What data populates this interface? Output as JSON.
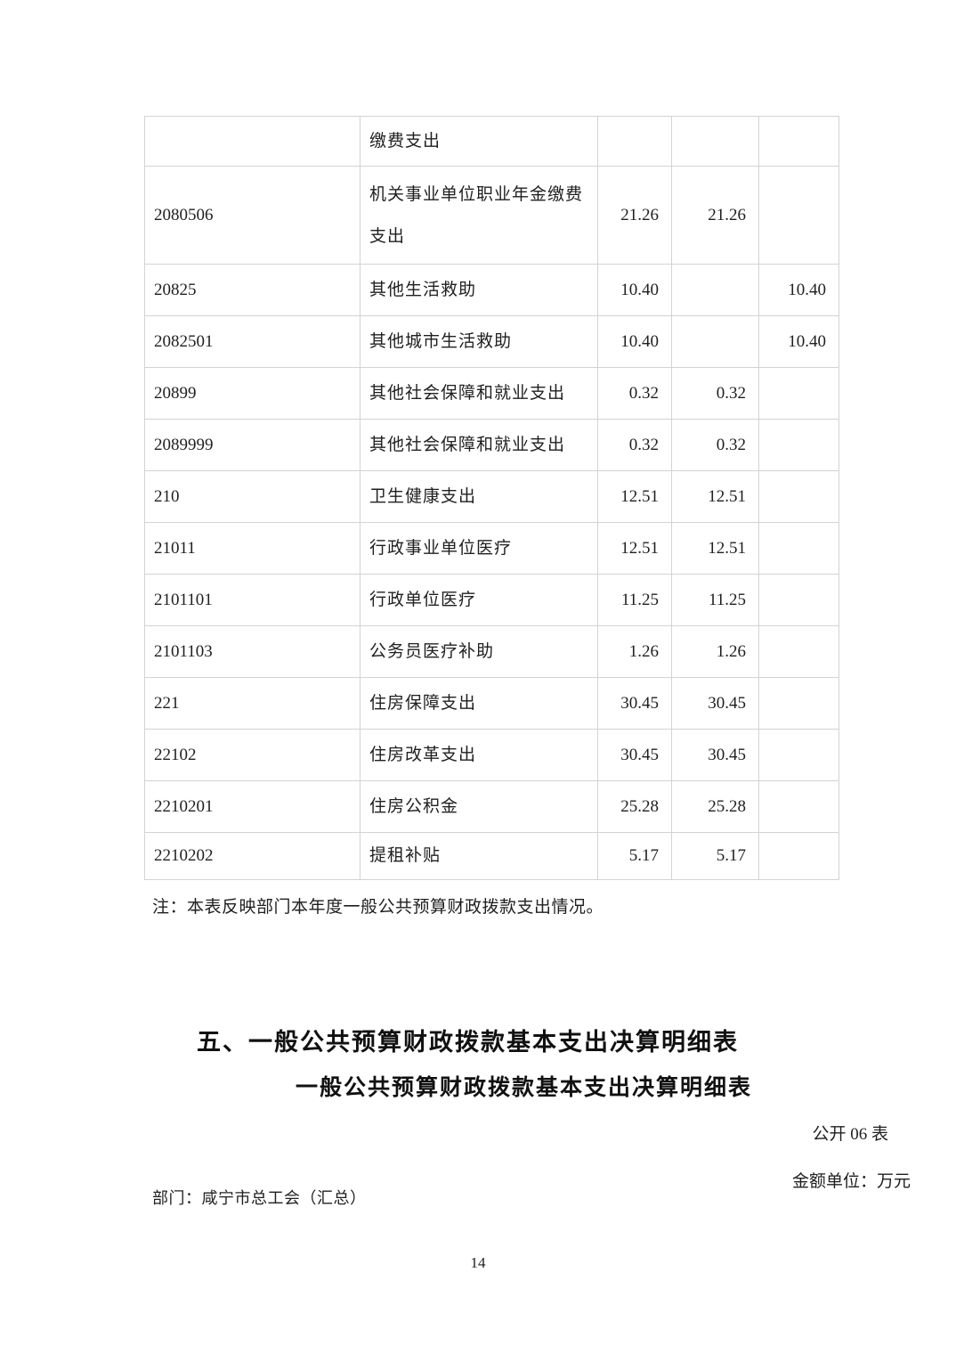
{
  "page": {
    "note": "注：本表反映部门本年度一般公共预算财政拨款支出情况。",
    "section_title": "五、一般公共预算财政拨款基本支出决算明细表",
    "table_title": "一般公共预算财政拨款基本支出决算明细表",
    "sheet_code": "公开 06 表",
    "unit_label": "金额单位：万元",
    "department_label": "部门：咸宁市总工会（汇总）",
    "page_number": "14"
  },
  "colors": {
    "table_border": "#d3d3d3",
    "text": "#1f1f1f"
  },
  "table": {
    "rows": [
      {
        "code": "",
        "name": "缴费支出",
        "c3": "",
        "c4": "",
        "c5": ""
      },
      {
        "code": "2080506",
        "name": "机关事业单位职业年金缴费支出",
        "c3": "21.26",
        "c4": "21.26",
        "c5": ""
      },
      {
        "code": "20825",
        "name": "其他生活救助",
        "c3": "10.40",
        "c4": "",
        "c5": "10.40"
      },
      {
        "code": "2082501",
        "name": "其他城市生活救助",
        "c3": "10.40",
        "c4": "",
        "c5": "10.40"
      },
      {
        "code": "20899",
        "name": "其他社会保障和就业支出",
        "c3": "0.32",
        "c4": "0.32",
        "c5": ""
      },
      {
        "code": "2089999",
        "name": "其他社会保障和就业支出",
        "c3": "0.32",
        "c4": "0.32",
        "c5": ""
      },
      {
        "code": "210",
        "name": "卫生健康支出",
        "c3": "12.51",
        "c4": "12.51",
        "c5": ""
      },
      {
        "code": "21011",
        "name": "行政事业单位医疗",
        "c3": "12.51",
        "c4": "12.51",
        "c5": ""
      },
      {
        "code": "2101101",
        "name": "行政单位医疗",
        "c3": "11.25",
        "c4": "11.25",
        "c5": ""
      },
      {
        "code": "2101103",
        "name": "公务员医疗补助",
        "c3": "1.26",
        "c4": "1.26",
        "c5": ""
      },
      {
        "code": "221",
        "name": "住房保障支出",
        "c3": "30.45",
        "c4": "30.45",
        "c5": ""
      },
      {
        "code": "22102",
        "name": "住房改革支出",
        "c3": "30.45",
        "c4": "30.45",
        "c5": ""
      },
      {
        "code": "2210201",
        "name": "住房公积金",
        "c3": "25.28",
        "c4": "25.28",
        "c5": ""
      },
      {
        "code": "2210202",
        "name": "提租补贴",
        "c3": "5.17",
        "c4": "5.17",
        "c5": ""
      }
    ]
  }
}
